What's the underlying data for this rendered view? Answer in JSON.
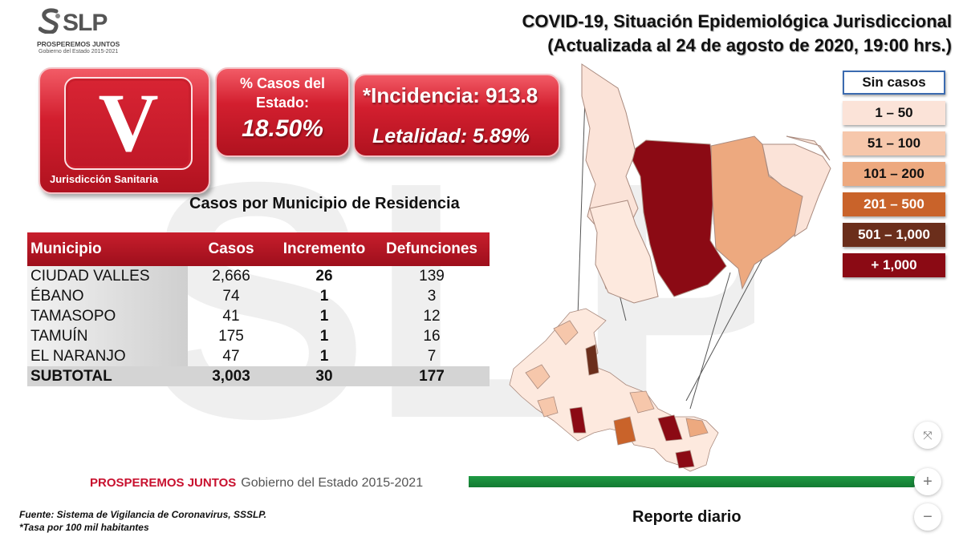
{
  "colors": {
    "red_dark": "#8b0a14",
    "red": "#c8102e",
    "green": "#1f9a43",
    "lvl_1_50": "#fbe3d8",
    "lvl_51_100": "#f6c7ab",
    "lvl_101_200": "#eda97f",
    "lvl_201_500": "#c9632a",
    "lvl_501_1000": "#6b2e1b",
    "lvl_1000_plus": "#8b0a14"
  },
  "logo": {
    "brand": "SLP",
    "line1": "PROSPEREMOS JUNTOS",
    "line2": "Gobierno del Estado 2015-2021"
  },
  "header": {
    "title_line1": "COVID-19, Situación Epidemiológica Jurisdiccional",
    "title_line2": "(Actualizada al 24 de agosto de 2020, 19:00 hrs.)"
  },
  "jurisdiction": {
    "numeral": "V",
    "label": "Jurisdicción Sanitaria"
  },
  "stats": {
    "pct_label": "% Casos del Estado:",
    "pct_value": "18.50%",
    "incidence": "*Incidencia: 913.8",
    "lethality": "Letalidad: 5.89%"
  },
  "table": {
    "title": "Casos por Municipio  de Residencia",
    "headers": [
      "Municipio",
      "Casos",
      "Incremento",
      "Defunciones"
    ],
    "rows": [
      {
        "municipio": "CIUDAD VALLES",
        "casos": "2,666",
        "incremento": "26",
        "defunciones": "139"
      },
      {
        "municipio": "ÉBANO",
        "casos": "74",
        "incremento": "1",
        "defunciones": "3"
      },
      {
        "municipio": "TAMASOPO",
        "casos": "41",
        "incremento": "1",
        "defunciones": "12"
      },
      {
        "municipio": "TAMUÍN",
        "casos": "175",
        "incremento": "1",
        "defunciones": "16"
      },
      {
        "municipio": "EL NARANJO",
        "casos": "47",
        "incremento": "1",
        "defunciones": "7"
      }
    ],
    "subtotal": {
      "municipio": "SUBTOTAL",
      "casos": "3,003",
      "incremento": "30",
      "defunciones": "177"
    }
  },
  "legend": [
    {
      "label": "Sin casos",
      "color": "#ffffff",
      "text": "#111111"
    },
    {
      "label": "1 – 50",
      "color": "#fbe3d8",
      "text": "#111111"
    },
    {
      "label": "51 – 100",
      "color": "#f6c7ab",
      "text": "#111111"
    },
    {
      "label": "101 – 200",
      "color": "#eda97f",
      "text": "#111111"
    },
    {
      "label": "201 – 500",
      "color": "#c9632a",
      "text": "#ffffff"
    },
    {
      "label": "501 – 1,000",
      "color": "#6b2e1b",
      "text": "#ffffff"
    },
    {
      "label": "+ 1,000",
      "color": "#8b0a14",
      "text": "#ffffff"
    }
  ],
  "footer": {
    "brand_bold": "PROSPEREMOS JUNTOS",
    "brand_rest": "Gobierno del Estado 2015-2021",
    "source_line1": "Fuente: Sistema de Vigilancia de Coronavirus, SSSLP.",
    "source_line2": "*Tasa por 100 mil habitantes",
    "report": "Reporte diario"
  },
  "controls": {
    "fit_icon": "fit-screen-icon",
    "plus_icon": "plus-icon",
    "minus_icon": "minus-icon"
  }
}
